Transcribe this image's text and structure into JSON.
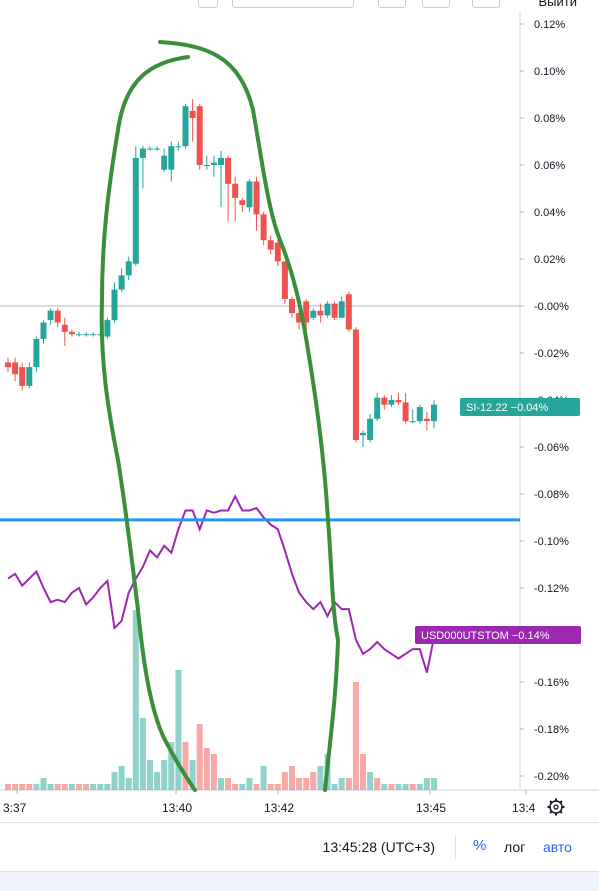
{
  "toolbar": {
    "exit_label": "Выйти"
  },
  "colors": {
    "up": "#26a69a",
    "down": "#ef5350",
    "line_blue": "#2196f3",
    "compare_line": "#9c27b0",
    "annotation": "#3a8f3a",
    "si_badge": "#26a69a",
    "usd_badge": "#9c27b0"
  },
  "chart_data": {
    "type": "candlestick",
    "x_ticks": [
      "3:37",
      "13:40",
      "13:42",
      "13:45",
      "13:4"
    ],
    "y_ticks": [
      "0.12%",
      "0.10%",
      "0.08%",
      "0.06%",
      "0.04%",
      "0.02%",
      "-0.00%",
      "-0.02%",
      "-0.04%",
      "-0.06%",
      "-0.08%",
      "-0.10%",
      "-0.12%",
      "-0.14%",
      "-0.16%",
      "-0.18%",
      "-0.20%"
    ],
    "ylim": [
      -0.205,
      0.12
    ],
    "zero_line": 0.0,
    "horizontal_line_level": -0.091,
    "candles": [
      {
        "o": -0.024,
        "c": -0.026,
        "h": -0.022,
        "l": -0.028
      },
      {
        "o": -0.024,
        "c": -0.029,
        "h": -0.022,
        "l": -0.032
      },
      {
        "o": -0.026,
        "c": -0.034,
        "h": -0.024,
        "l": -0.036
      },
      {
        "o": -0.034,
        "c": -0.026,
        "h": -0.024,
        "l": -0.035
      },
      {
        "o": -0.026,
        "c": -0.014,
        "h": -0.013,
        "l": -0.028
      },
      {
        "o": -0.014,
        "c": -0.007,
        "h": -0.006,
        "l": -0.016
      },
      {
        "o": -0.006,
        "c": -0.002,
        "h": -0.001,
        "l": -0.008
      },
      {
        "o": -0.002,
        "c": -0.007,
        "h": -0.001,
        "l": -0.009
      },
      {
        "o": -0.008,
        "c": -0.011,
        "h": -0.005,
        "l": -0.017
      },
      {
        "o": -0.011,
        "c": -0.012,
        "h": -0.01,
        "l": -0.013
      },
      {
        "o": -0.012,
        "c": -0.012,
        "h": -0.011,
        "l": -0.013
      },
      {
        "o": -0.012,
        "c": -0.012,
        "h": -0.011,
        "l": -0.013
      },
      {
        "o": -0.012,
        "c": -0.012,
        "h": -0.011,
        "l": -0.013
      },
      {
        "o": -0.012,
        "c": -0.012,
        "h": -0.011,
        "l": -0.013
      },
      {
        "o": -0.013,
        "c": -0.006,
        "h": -0.005,
        "l": -0.014
      },
      {
        "o": -0.006,
        "c": 0.007,
        "h": 0.01,
        "l": -0.007
      },
      {
        "o": 0.007,
        "c": 0.013,
        "h": 0.016,
        "l": 0.006
      },
      {
        "o": 0.013,
        "c": 0.019,
        "h": 0.021,
        "l": 0.011
      },
      {
        "o": 0.018,
        "c": 0.063,
        "h": 0.068,
        "l": 0.017
      },
      {
        "o": 0.063,
        "c": 0.067,
        "h": 0.068,
        "l": 0.05
      },
      {
        "o": 0.067,
        "c": 0.067,
        "h": 0.068,
        "l": 0.066
      },
      {
        "o": 0.067,
        "c": 0.067,
        "h": 0.068,
        "l": 0.066
      },
      {
        "o": 0.058,
        "c": 0.064,
        "h": 0.067,
        "l": 0.057
      },
      {
        "o": 0.058,
        "c": 0.068,
        "h": 0.07,
        "l": 0.053
      },
      {
        "o": 0.068,
        "c": 0.068,
        "h": 0.07,
        "l": 0.066
      },
      {
        "o": 0.068,
        "c": 0.085,
        "h": 0.086,
        "l": 0.067
      },
      {
        "o": 0.083,
        "c": 0.08,
        "h": 0.088,
        "l": 0.07
      },
      {
        "o": 0.085,
        "c": 0.06,
        "h": 0.086,
        "l": 0.058
      },
      {
        "o": 0.06,
        "c": 0.06,
        "h": 0.064,
        "l": 0.058
      },
      {
        "o": 0.06,
        "c": 0.061,
        "h": 0.064,
        "l": 0.055
      },
      {
        "o": 0.06,
        "c": 0.063,
        "h": 0.066,
        "l": 0.042
      },
      {
        "o": 0.063,
        "c": 0.052,
        "h": 0.064,
        "l": 0.036
      },
      {
        "o": 0.052,
        "c": 0.046,
        "h": 0.055,
        "l": 0.036
      },
      {
        "o": 0.045,
        "c": 0.043,
        "h": 0.046,
        "l": 0.04
      },
      {
        "o": 0.042,
        "c": 0.053,
        "h": 0.054,
        "l": 0.04
      },
      {
        "o": 0.053,
        "c": 0.039,
        "h": 0.055,
        "l": 0.032
      },
      {
        "o": 0.039,
        "c": 0.028,
        "h": 0.04,
        "l": 0.026
      },
      {
        "o": 0.028,
        "c": 0.024,
        "h": 0.03,
        "l": 0.022
      },
      {
        "o": 0.027,
        "c": 0.019,
        "h": 0.028,
        "l": 0.017
      },
      {
        "o": 0.019,
        "c": 0.003,
        "h": 0.019,
        "l": 0.001
      },
      {
        "o": 0.003,
        "c": -0.003,
        "h": 0.004,
        "l": -0.005
      },
      {
        "o": -0.003,
        "c": -0.007,
        "h": -0.001,
        "l": -0.01
      },
      {
        "o": 0.002,
        "c": -0.007,
        "h": 0.003,
        "l": -0.011
      },
      {
        "o": -0.005,
        "c": -0.002,
        "h": -0.001,
        "l": -0.006
      },
      {
        "o": -0.002,
        "c": -0.004,
        "h": 0.001,
        "l": -0.007
      },
      {
        "o": -0.004,
        "c": 0.001,
        "h": 0.002,
        "l": -0.005
      },
      {
        "o": 0.001,
        "c": -0.005,
        "h": 0.002,
        "l": -0.006
      },
      {
        "o": -0.005,
        "c": 0.002,
        "h": 0.004,
        "l": -0.005
      },
      {
        "o": 0.005,
        "c": -0.01,
        "h": 0.006,
        "l": -0.011
      },
      {
        "o": -0.01,
        "c": -0.057,
        "h": -0.009,
        "l": -0.058
      },
      {
        "o": -0.055,
        "c": -0.054,
        "h": -0.053,
        "l": -0.06
      },
      {
        "o": -0.057,
        "c": -0.048,
        "h": -0.046,
        "l": -0.058
      },
      {
        "o": -0.048,
        "c": -0.039,
        "h": -0.037,
        "l": -0.049
      },
      {
        "o": -0.039,
        "c": -0.042,
        "h": -0.038,
        "l": -0.044
      },
      {
        "o": -0.042,
        "c": -0.04,
        "h": -0.038,
        "l": -0.043
      },
      {
        "o": -0.04,
        "c": -0.041,
        "h": -0.037,
        "l": -0.042
      },
      {
        "o": -0.041,
        "c": -0.049,
        "h": -0.037,
        "l": -0.05
      },
      {
        "o": -0.049,
        "c": -0.049,
        "h": -0.044,
        "l": -0.05
      },
      {
        "o": -0.049,
        "c": -0.043,
        "h": -0.042,
        "l": -0.05
      },
      {
        "o": -0.048,
        "c": -0.049,
        "h": -0.045,
        "l": -0.053
      },
      {
        "o": -0.049,
        "c": -0.042,
        "h": -0.04,
        "l": -0.052
      }
    ],
    "volumes": [
      {
        "v": 1,
        "up": false
      },
      {
        "v": 1,
        "up": false
      },
      {
        "v": 1,
        "up": false
      },
      {
        "v": 1,
        "up": false
      },
      {
        "v": 1,
        "up": true
      },
      {
        "v": 2,
        "up": true
      },
      {
        "v": 1,
        "up": true
      },
      {
        "v": 1,
        "up": false
      },
      {
        "v": 1,
        "up": false
      },
      {
        "v": 1,
        "up": true
      },
      {
        "v": 1,
        "up": false
      },
      {
        "v": 1,
        "up": false
      },
      {
        "v": 1,
        "up": true
      },
      {
        "v": 1,
        "up": true
      },
      {
        "v": 1,
        "up": true
      },
      {
        "v": 3,
        "up": true
      },
      {
        "v": 4,
        "up": true
      },
      {
        "v": 2,
        "up": true
      },
      {
        "v": 30,
        "up": true
      },
      {
        "v": 12,
        "up": true
      },
      {
        "v": 5,
        "up": true
      },
      {
        "v": 3,
        "up": true
      },
      {
        "v": 5,
        "up": true
      },
      {
        "v": 8,
        "up": true
      },
      {
        "v": 20,
        "up": true
      },
      {
        "v": 8,
        "up": false
      },
      {
        "v": 5,
        "up": true
      },
      {
        "v": 11,
        "up": false
      },
      {
        "v": 7,
        "up": false
      },
      {
        "v": 6,
        "up": false
      },
      {
        "v": 2,
        "up": true
      },
      {
        "v": 2,
        "up": false
      },
      {
        "v": 1,
        "up": false
      },
      {
        "v": 1,
        "up": true
      },
      {
        "v": 2,
        "up": true
      },
      {
        "v": 1,
        "up": false
      },
      {
        "v": 4,
        "up": true
      },
      {
        "v": 1,
        "up": false
      },
      {
        "v": 1,
        "up": false
      },
      {
        "v": 3,
        "up": false
      },
      {
        "v": 4,
        "up": false
      },
      {
        "v": 2,
        "up": false
      },
      {
        "v": 2,
        "up": false
      },
      {
        "v": 3,
        "up": false
      },
      {
        "v": 4,
        "up": true
      },
      {
        "v": 6,
        "up": true
      },
      {
        "v": 1,
        "up": true
      },
      {
        "v": 2,
        "up": true
      },
      {
        "v": 2,
        "up": false
      },
      {
        "v": 18,
        "up": false
      },
      {
        "v": 6,
        "up": false
      },
      {
        "v": 3,
        "up": true
      },
      {
        "v": 2,
        "up": false
      },
      {
        "v": 1,
        "up": true
      },
      {
        "v": 1,
        "up": false
      },
      {
        "v": 1,
        "up": true
      },
      {
        "v": 1,
        "up": true
      },
      {
        "v": 1,
        "up": false
      },
      {
        "v": 1,
        "up": true
      },
      {
        "v": 2,
        "up": true
      },
      {
        "v": 2,
        "up": true
      }
    ],
    "series": [
      {
        "name": "USD000UTSTOM",
        "values": [
          -0.116,
          -0.114,
          -0.119,
          -0.116,
          -0.113,
          -0.12,
          -0.126,
          -0.125,
          -0.126,
          -0.122,
          -0.12,
          -0.127,
          -0.124,
          -0.12,
          -0.117,
          -0.137,
          -0.134,
          -0.122,
          -0.116,
          -0.111,
          -0.104,
          -0.107,
          -0.102,
          -0.105,
          -0.095,
          -0.087,
          -0.087,
          -0.095,
          -0.087,
          -0.088,
          -0.087,
          -0.087,
          -0.081,
          -0.087,
          -0.087,
          -0.086,
          -0.09,
          -0.093,
          -0.095,
          -0.104,
          -0.114,
          -0.122,
          -0.126,
          -0.129,
          -0.126,
          -0.132,
          -0.126,
          -0.129,
          -0.129,
          -0.142,
          -0.148,
          -0.146,
          -0.143,
          -0.146,
          -0.148,
          -0.15,
          -0.148,
          -0.146,
          -0.146,
          -0.156,
          -0.141
        ]
      }
    ],
    "price_labels": [
      {
        "symbol": "SI-12.22",
        "value": "−0.04%"
      },
      {
        "symbol": "USD000UTSTOM",
        "value": "−0.14%"
      }
    ]
  },
  "footer": {
    "time": "13:45:28 (UTC+3)",
    "percent": "%",
    "log": "лог",
    "auto": "авто"
  }
}
